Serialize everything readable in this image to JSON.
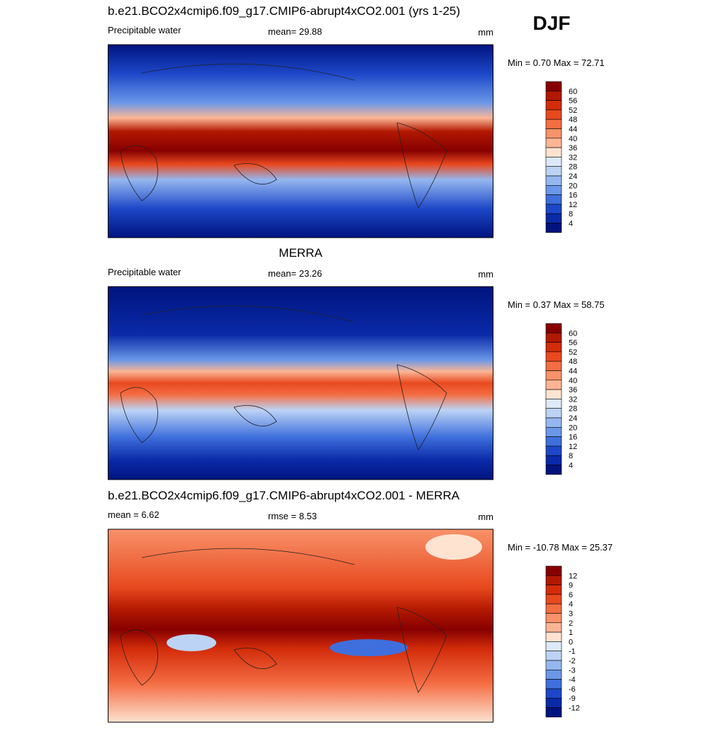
{
  "figure_label": "DJF",
  "panels": [
    {
      "title": "b.e21.BCO2x4cmip6.f09_g17.CMIP6-abrupt4xCO2.001 (yrs 1-25)",
      "title_align": "left",
      "left": "Precipitable water",
      "center": "mean=  29.88",
      "right": "mm",
      "minmax": "Min =   0.70 Max =  72.71",
      "colorbar": {
        "labels": [
          60,
          56,
          52,
          48,
          44,
          40,
          36,
          32,
          28,
          24,
          20,
          16,
          12,
          8,
          4
        ],
        "colors": [
          "#870000",
          "#b21800",
          "#d32c0a",
          "#e8491f",
          "#f46d43",
          "#f8926a",
          "#fbb595",
          "#fde3d0",
          "#dce9f8",
          "#bcd3f5",
          "#94b7ef",
          "#6a97e8",
          "#3f6fdc",
          "#1d47c8",
          "#0a2aa8",
          "#00147f"
        ]
      }
    },
    {
      "title": "MERRA",
      "title_align": "center",
      "left": "Precipitable water",
      "center": "mean=  23.26",
      "right": "mm",
      "minmax": "Min =   0.37 Max =  58.75",
      "colorbar": {
        "labels": [
          60,
          56,
          52,
          48,
          44,
          40,
          36,
          32,
          28,
          24,
          20,
          16,
          12,
          8,
          4
        ],
        "colors": [
          "#870000",
          "#b21800",
          "#d32c0a",
          "#e8491f",
          "#f46d43",
          "#f8926a",
          "#fbb595",
          "#fde3d0",
          "#dce9f8",
          "#bcd3f5",
          "#94b7ef",
          "#6a97e8",
          "#3f6fdc",
          "#1d47c8",
          "#0a2aa8",
          "#00147f"
        ]
      }
    },
    {
      "title": "b.e21.BCO2x4cmip6.f09_g17.CMIP6-abrupt4xCO2.001 - MERRA",
      "title_align": "left",
      "left": "mean =   6.62",
      "center": "rmse =   8.53",
      "right": "mm",
      "minmax": "Min = -10.78 Max =  25.37",
      "colorbar": {
        "labels": [
          12,
          9,
          6,
          4,
          3,
          2,
          1,
          0,
          -1,
          -2,
          -3,
          -4,
          -6,
          -9,
          -12
        ],
        "colors": [
          "#870000",
          "#b21800",
          "#d32c0a",
          "#e8491f",
          "#f46d43",
          "#f8926a",
          "#fbb595",
          "#fde3d0",
          "#dce9f8",
          "#bcd3f5",
          "#94b7ef",
          "#6a97e8",
          "#3f6fdc",
          "#1d47c8",
          "#0a2aa8",
          "#00147f"
        ]
      }
    }
  ]
}
